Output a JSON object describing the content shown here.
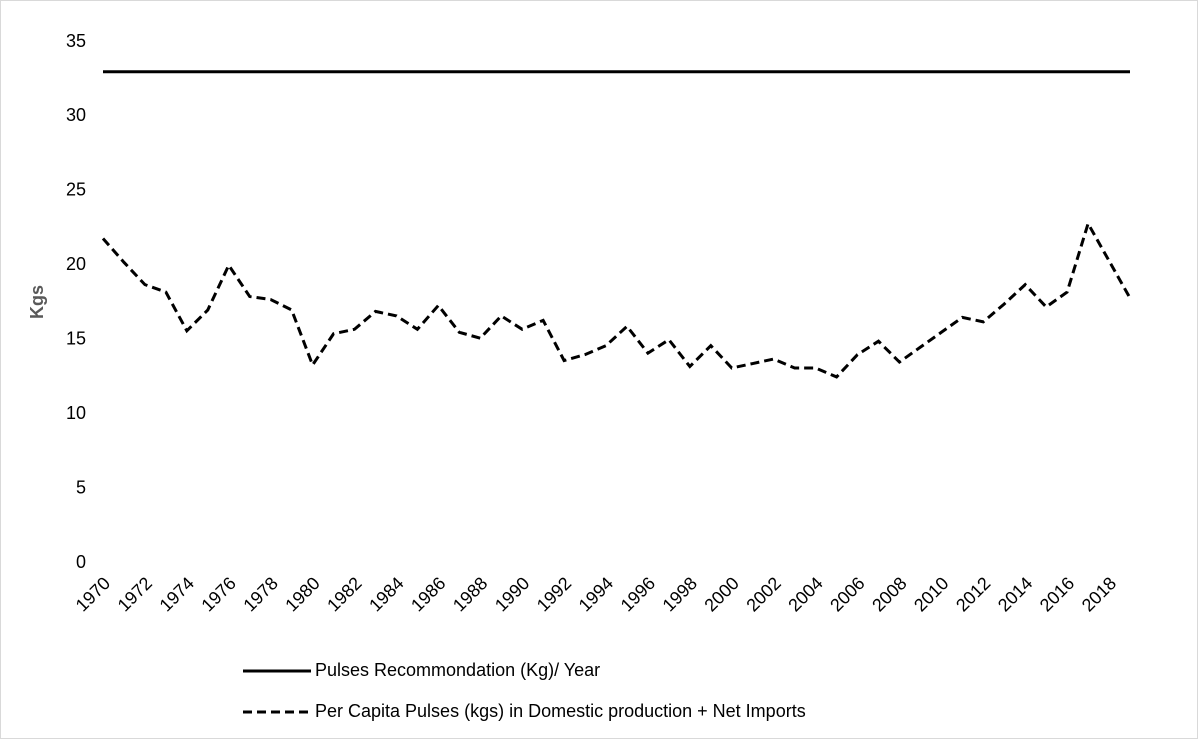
{
  "chart_data": {
    "type": "line",
    "y_label": "Kgs",
    "x": [
      1970,
      1971,
      1972,
      1973,
      1974,
      1975,
      1976,
      1977,
      1978,
      1979,
      1980,
      1981,
      1982,
      1983,
      1984,
      1985,
      1986,
      1987,
      1988,
      1989,
      1990,
      1991,
      1992,
      1993,
      1994,
      1995,
      1996,
      1997,
      1998,
      1999,
      2000,
      2001,
      2002,
      2003,
      2004,
      2005,
      2006,
      2007,
      2008,
      2009,
      2010,
      2011,
      2012,
      2013,
      2014,
      2015,
      2016,
      2017,
      2018,
      2019
    ],
    "xlim": [
      1970,
      2019
    ],
    "xticks": [
      1970,
      1972,
      1974,
      1976,
      1978,
      1980,
      1982,
      1984,
      1986,
      1988,
      1990,
      1992,
      1994,
      1996,
      1998,
      2000,
      2002,
      2004,
      2006,
      2008,
      2010,
      2012,
      2014,
      2016,
      2018
    ],
    "ylim": [
      0,
      35
    ],
    "yticks": [
      0,
      5,
      10,
      15,
      20,
      25,
      30,
      35
    ],
    "grid": false,
    "legend": "bottom",
    "series": [
      {
        "name": "Pulses  Recommondation (Kg)/ Year",
        "color": "#000000",
        "dash": "solid",
        "values": [
          33,
          33,
          33,
          33,
          33,
          33,
          33,
          33,
          33,
          33,
          33,
          33,
          33,
          33,
          33,
          33,
          33,
          33,
          33,
          33,
          33,
          33,
          33,
          33,
          33,
          33,
          33,
          33,
          33,
          33,
          33,
          33,
          33,
          33,
          33,
          33,
          33,
          33,
          33,
          33,
          33,
          33,
          33,
          33,
          33,
          33,
          33,
          33,
          33,
          33
        ]
      },
      {
        "name": "Per Capita Pulses (kgs) in Domestic production + Net Imports",
        "color": "#000000",
        "dash": "dashed",
        "values": [
          21.8,
          20.2,
          18.7,
          18.2,
          15.6,
          17.0,
          20.0,
          17.9,
          17.7,
          17.0,
          13.3,
          15.4,
          15.7,
          16.9,
          16.6,
          15.7,
          17.3,
          15.5,
          15.1,
          16.6,
          15.7,
          16.3,
          13.6,
          14.0,
          14.6,
          15.9,
          14.1,
          15.0,
          13.2,
          14.6,
          13.1,
          13.4,
          13.7,
          13.1,
          13.1,
          12.5,
          14.0,
          14.9,
          13.5,
          14.5,
          15.5,
          16.5,
          16.2,
          17.4,
          18.7,
          17.2,
          18.2,
          22.8,
          20.3,
          17.8
        ]
      }
    ]
  }
}
